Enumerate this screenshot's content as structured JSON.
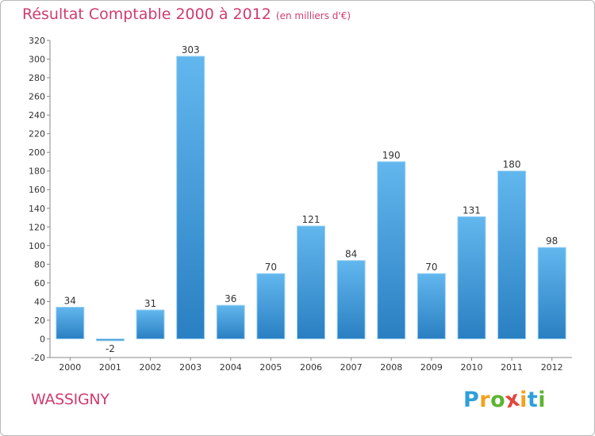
{
  "chart_data": {
    "type": "bar",
    "title": "Résultat Comptable 2000 à 2012",
    "unit_label": "(en milliers d'€)",
    "categories": [
      "2000",
      "2001",
      "2002",
      "2003",
      "2004",
      "2005",
      "2006",
      "2007",
      "2008",
      "2009",
      "2010",
      "2011",
      "2012"
    ],
    "values": [
      34,
      -2,
      31,
      303,
      36,
      70,
      121,
      84,
      190,
      70,
      131,
      180,
      98
    ],
    "ylim": [
      -20,
      320
    ],
    "yticks": [
      -20,
      0,
      20,
      40,
      60,
      80,
      100,
      120,
      140,
      160,
      180,
      200,
      220,
      240,
      260,
      280,
      300,
      320
    ],
    "grid": false,
    "xlabel": "",
    "ylabel": ""
  },
  "commune": "WASSIGNY",
  "logo": {
    "text": "Proxiti",
    "letters": [
      {
        "ch": "P",
        "color": "#2f9fd8"
      },
      {
        "ch": "r",
        "color": "#f3a21d"
      },
      {
        "ch": "o",
        "color": "#5cb531"
      },
      {
        "ch": "x",
        "color": "#e0463c"
      },
      {
        "ch": "i",
        "color": "#f3a21d"
      },
      {
        "ch": "t",
        "color": "#2f9fd8"
      },
      {
        "ch": "i",
        "color": "#5cb531"
      }
    ]
  },
  "colors": {
    "bar_top": "#62b7ee",
    "bar_bottom": "#2a7fc2",
    "title": "#d03c6c"
  }
}
